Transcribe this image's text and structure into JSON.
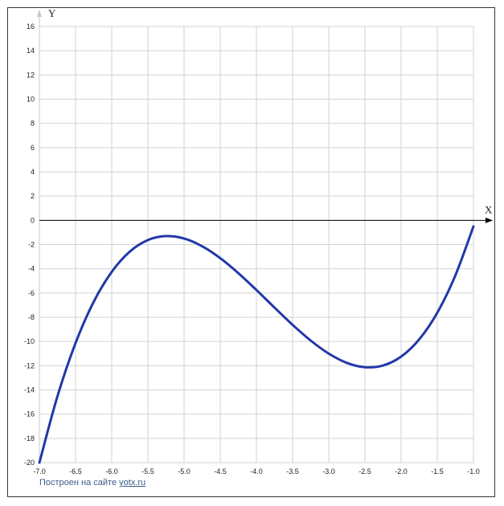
{
  "chart_data": {
    "type": "line",
    "title": "",
    "xlabel": "X",
    "ylabel": "Y",
    "xlim": [
      -7.0,
      -1.0
    ],
    "ylim": [
      -20,
      16
    ],
    "grid": true,
    "x_ticks": [
      -7.0,
      -6.5,
      -6.0,
      -5.5,
      -5.0,
      -4.5,
      -4.0,
      -3.5,
      -3.0,
      -2.5,
      -2.0,
      -1.5,
      -1.0
    ],
    "x_tick_labels": [
      "-7.0",
      "-6.5",
      "-6.0",
      "-5.5",
      "-5.0",
      "-4.5",
      "-4.0",
      "-3.5",
      "-3.0",
      "-2.5",
      "-2.0",
      "-1.5",
      "-1.0"
    ],
    "y_ticks": [
      -20,
      -18,
      -16,
      -14,
      -12,
      -10,
      -8,
      -6,
      -4,
      -2,
      0,
      2,
      4,
      6,
      8,
      10,
      12,
      14,
      16
    ],
    "y_tick_labels": [
      "-20",
      "-18",
      "-16",
      "-14",
      "-12",
      "-10",
      "-8",
      "-6",
      "-4",
      "-2",
      "0",
      "2",
      "4",
      "6",
      "8",
      "10",
      "12",
      "14",
      "16"
    ],
    "series": [
      {
        "color": "#2238a8",
        "x": [
          -7.0,
          -6.75,
          -6.5,
          -6.25,
          -6.0,
          -5.75,
          -5.5,
          -5.25,
          -5.0,
          -4.75,
          -4.5,
          -4.25,
          -4.0,
          -3.75,
          -3.5,
          -3.25,
          -3.0,
          -2.75,
          -2.5,
          -2.25,
          -2.0,
          -1.75,
          -1.5,
          -1.25,
          -1.0
        ],
        "y": [
          -20.0,
          -14.516,
          -10.125,
          -6.734,
          -4.25,
          -2.578,
          -1.625,
          -1.297,
          -1.5,
          -2.141,
          -3.125,
          -4.359,
          -5.75,
          -7.203,
          -8.625,
          -9.922,
          -11.0,
          -11.766,
          -12.125,
          -11.984,
          -11.25,
          -9.828,
          -7.625,
          -4.547,
          -0.5
        ]
      }
    ]
  },
  "credit": {
    "prefix": "Построен на сайте ",
    "link_text": "yotx.ru"
  }
}
